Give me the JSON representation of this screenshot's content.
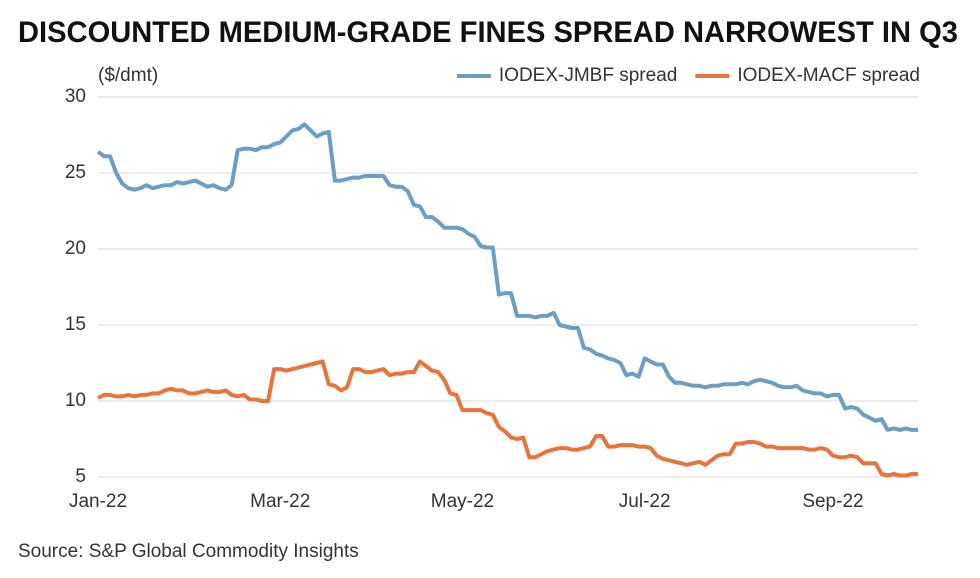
{
  "chart_data": {
    "type": "line",
    "title": "DISCOUNTED MEDIUM-GRADE FINES SPREAD NARROWEST IN Q3",
    "y_label": "($/dmt)",
    "source": "Source: S&P Global Commodity Insights",
    "categories": [
      "Jan-22",
      null,
      null,
      null,
      null,
      null,
      null,
      null,
      null,
      null,
      null,
      null,
      null,
      null,
      null,
      null,
      null,
      null,
      null,
      null,
      null,
      null,
      null,
      null,
      null,
      null,
      null,
      null,
      null,
      null,
      "Mar-22",
      null,
      null,
      null,
      null,
      null,
      null,
      null,
      null,
      null,
      null,
      null,
      null,
      null,
      null,
      null,
      null,
      null,
      null,
      null,
      null,
      null,
      null,
      null,
      null,
      null,
      null,
      null,
      null,
      null,
      "May-22",
      null,
      null,
      null,
      null,
      null,
      null,
      null,
      null,
      null,
      null,
      null,
      null,
      null,
      null,
      null,
      null,
      null,
      null,
      null,
      null,
      null,
      null,
      null,
      null,
      null,
      null,
      null,
      null,
      null,
      "Jul-22",
      null,
      null,
      null,
      null,
      null,
      null,
      null,
      null,
      null,
      null,
      null,
      null,
      null,
      null,
      null,
      null,
      null,
      null,
      null,
      null,
      null,
      null,
      null,
      null,
      null,
      null,
      null,
      null,
      null,
      null,
      "Sep-22",
      null,
      null,
      null,
      null,
      null,
      null,
      null,
      null,
      null,
      null,
      null,
      null,
      null,
      null
    ],
    "series": [
      {
        "name": "IODEX-JMBF spread",
        "color": "#6a9ec4",
        "values": [
          26.4,
          26.1,
          26.1,
          25.0,
          24.3,
          24.0,
          23.9,
          24.0,
          24.2,
          24.0,
          24.1,
          24.2,
          24.2,
          24.4,
          24.3,
          24.4,
          24.5,
          24.3,
          24.1,
          24.2,
          24.0,
          23.9,
          24.2,
          26.5,
          26.6,
          26.6,
          26.5,
          26.7,
          26.7,
          26.9,
          27.0,
          27.4,
          27.8,
          27.9,
          28.2,
          27.8,
          27.4,
          27.6,
          27.7,
          24.5,
          24.5,
          24.6,
          24.7,
          24.7,
          24.8,
          24.8,
          24.8,
          24.8,
          24.2,
          24.1,
          24.1,
          23.8,
          22.9,
          22.8,
          22.1,
          22.1,
          21.8,
          21.4,
          21.4,
          21.4,
          21.3,
          21.0,
          20.8,
          20.2,
          20.1,
          20.1,
          17.0,
          17.1,
          17.1,
          15.6,
          15.6,
          15.6,
          15.5,
          15.6,
          15.6,
          15.8,
          15.0,
          14.9,
          14.8,
          14.8,
          13.5,
          13.4,
          13.1,
          13.0,
          12.8,
          12.7,
          12.5,
          11.7,
          11.8,
          11.6,
          12.8,
          12.6,
          12.4,
          12.4,
          11.6,
          11.2,
          11.2,
          11.1,
          11.0,
          11.0,
          10.9,
          11.0,
          11.0,
          11.1,
          11.1,
          11.1,
          11.2,
          11.1,
          11.3,
          11.4,
          11.3,
          11.2,
          11.0,
          10.9,
          10.9,
          11.0,
          10.7,
          10.6,
          10.5,
          10.5,
          10.3,
          10.4,
          10.4,
          9.5,
          9.6,
          9.5,
          9.1,
          8.9,
          8.7,
          8.8,
          8.1,
          8.2,
          8.1,
          8.2,
          8.1,
          8.1
        ]
      },
      {
        "name": "IODEX-MACF spread",
        "color": "#e8743b",
        "values": [
          10.2,
          10.4,
          10.4,
          10.3,
          10.3,
          10.4,
          10.3,
          10.4,
          10.4,
          10.5,
          10.5,
          10.7,
          10.8,
          10.7,
          10.7,
          10.5,
          10.5,
          10.6,
          10.7,
          10.6,
          10.6,
          10.7,
          10.4,
          10.3,
          10.4,
          10.1,
          10.1,
          10.0,
          10.0,
          12.1,
          12.1,
          12.0,
          12.1,
          12.2,
          12.3,
          12.4,
          12.5,
          12.6,
          11.1,
          11.0,
          10.7,
          10.9,
          12.1,
          12.1,
          11.9,
          11.9,
          12.0,
          12.1,
          11.7,
          11.8,
          11.8,
          11.9,
          11.9,
          12.6,
          12.3,
          12.0,
          11.9,
          11.4,
          10.5,
          10.4,
          9.4,
          9.4,
          9.4,
          9.4,
          9.2,
          9.1,
          8.3,
          8.0,
          7.6,
          7.5,
          7.6,
          6.3,
          6.3,
          6.5,
          6.7,
          6.8,
          6.9,
          6.9,
          6.8,
          6.8,
          6.9,
          7.0,
          7.7,
          7.7,
          7.0,
          7.0,
          7.1,
          7.1,
          7.1,
          7.0,
          7.0,
          6.9,
          6.4,
          6.2,
          6.1,
          6.0,
          5.9,
          5.8,
          5.9,
          6.0,
          5.8,
          6.1,
          6.4,
          6.5,
          6.5,
          7.2,
          7.2,
          7.3,
          7.3,
          7.2,
          7.0,
          7.0,
          6.9,
          6.9,
          6.9,
          6.9,
          6.9,
          6.8,
          6.8,
          6.9,
          6.8,
          6.4,
          6.3,
          6.3,
          6.4,
          6.3,
          5.9,
          5.9,
          5.9,
          5.2,
          5.1,
          5.2,
          5.1,
          5.1,
          5.2,
          5.2
        ]
      }
    ],
    "ylim": [
      5,
      30
    ],
    "yticks": [
      5,
      10,
      15,
      20,
      25,
      30
    ],
    "grid": true
  }
}
